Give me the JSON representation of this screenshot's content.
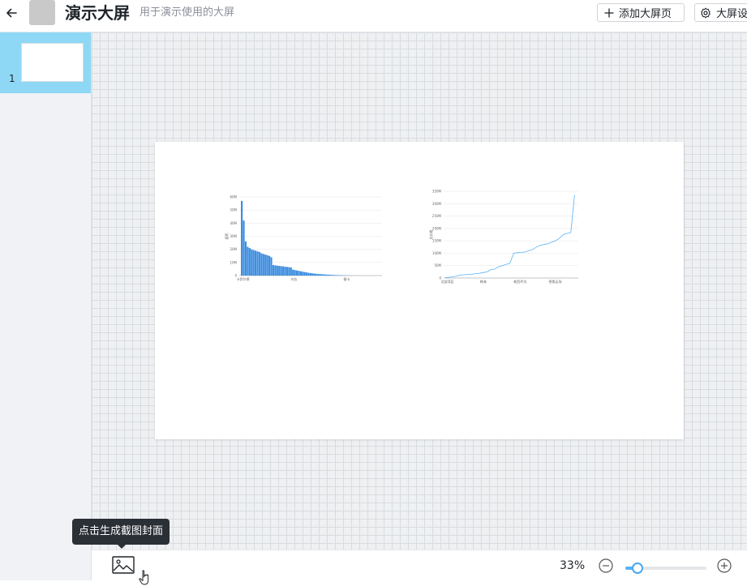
{
  "header": {
    "title": "演示大屏",
    "subtitle": "用于演示使用的大屏",
    "add_page_label": "添加大屏页",
    "settings_label": "大屏设"
  },
  "sidebar": {
    "pages": [
      {
        "number": "1"
      }
    ]
  },
  "tooltip": {
    "text": "点击生成截图封面"
  },
  "toolbar": {
    "zoom": "33%",
    "zoom_fraction": 0.15
  },
  "colors": {
    "accent": "#5ab2f5",
    "bar": "#3d8ee0",
    "selected_page": "#8fd8f5"
  },
  "icons": {
    "back": "arrow-left-icon",
    "add": "plus-icon",
    "settings": "gear-icon",
    "screenshot": "image-icon",
    "zoom_out": "minus-circle-icon",
    "zoom_in": "plus-circle-icon"
  },
  "chart_data": [
    {
      "type": "bar",
      "ylabel": "面积",
      "y_ticks": [
        "0",
        "10M",
        "20M",
        "30M",
        "40M",
        "50M",
        "60M"
      ],
      "ylim": [
        0,
        60000000
      ],
      "x_tick_labels": [
        "卡伊尔德",
        "乌拉",
        "塞卡"
      ],
      "values": [
        57000000,
        42000000,
        26000000,
        22000000,
        21000000,
        20000000,
        19500000,
        19000000,
        18500000,
        18000000,
        17000000,
        16500000,
        16000000,
        15500000,
        15000000,
        14000000,
        8000000,
        7800000,
        7600000,
        7400000,
        7200000,
        7000000,
        6800000,
        6600000,
        6400000,
        6200000,
        4500000,
        4200000,
        3900000,
        3600000,
        3300000,
        3000000,
        2700000,
        2400000,
        2100000,
        1900000,
        1700000,
        1500000,
        1300000,
        1200000,
        1100000,
        1000000,
        900000,
        800000,
        700000,
        600000,
        500000,
        450000,
        400000,
        350000,
        300000,
        250000,
        200000,
        150000,
        120000,
        100000,
        80000,
        60000
      ],
      "grid": true
    },
    {
      "type": "line",
      "ylabel": "总价格",
      "y_ticks": [
        "0",
        "50M",
        "100M",
        "150M",
        "200M",
        "250M",
        "300M",
        "350M"
      ],
      "ylim": [
        0,
        350000000
      ],
      "x_tick_labels": [
        "北部湾区",
        "韩海",
        "乾西坪沟",
        "德奥足场"
      ],
      "values": [
        1000000,
        3000000,
        5000000,
        8000000,
        12000000,
        13000000,
        15000000,
        15000000,
        18000000,
        19000000,
        22000000,
        25000000,
        34000000,
        36000000,
        45000000,
        50000000,
        55000000,
        60000000,
        100000000,
        102000000,
        103000000,
        105000000,
        110000000,
        115000000,
        125000000,
        132000000,
        135000000,
        138000000,
        145000000,
        150000000,
        160000000,
        175000000,
        180000000,
        183000000,
        335000000
      ],
      "grid": true
    }
  ]
}
